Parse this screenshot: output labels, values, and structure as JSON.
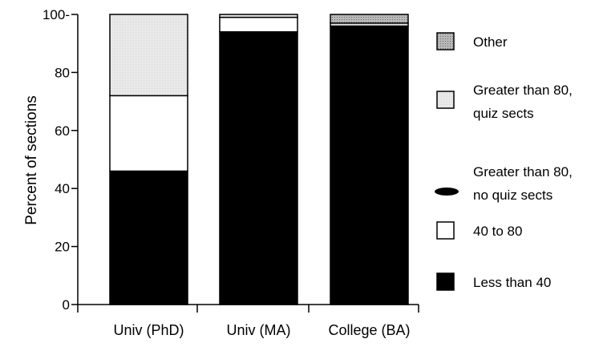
{
  "chart_data": {
    "type": "bar",
    "stacked": true,
    "ylabel": "Percent of sections",
    "xlabel": "",
    "ylim": [
      0,
      100
    ],
    "y_ticks": [
      "0",
      "20",
      "40",
      "60",
      "80",
      "100-"
    ],
    "grid": false,
    "legend_position": "right",
    "categories": [
      "Univ (PhD)",
      "Univ (MA)",
      "College (BA)"
    ],
    "series": [
      {
        "name": "Less than 40",
        "color": "#000000",
        "values": [
          46,
          94,
          96
        ]
      },
      {
        "name": "40 to 80",
        "color": "#ffffff",
        "values": [
          26,
          5,
          0
        ]
      },
      {
        "name": "Greater than 80, no quiz sects",
        "color": "#000000",
        "values": [
          0,
          0,
          0
        ]
      },
      {
        "name": "Greater than 80, quiz sects",
        "color": "#e4e4e4",
        "values": [
          28,
          1,
          1
        ]
      },
      {
        "name": "Other",
        "color": "#a8a8a8",
        "values": [
          0,
          0,
          3
        ]
      }
    ],
    "legend": [
      {
        "label": "Other",
        "lines": [
          "Other"
        ],
        "color": "#a8a8a8",
        "marker": "square-pattern"
      },
      {
        "label": "Greater than 80, quiz sects",
        "lines": [
          "Greater than 80,",
          "quiz sects"
        ],
        "color": "#e4e4e4",
        "marker": "square"
      },
      {
        "label": "Greater than 80, no quiz sects",
        "lines": [
          "Greater than 80,",
          "no quiz sects"
        ],
        "color": "#000000",
        "marker": "ellipse"
      },
      {
        "label": "40 to 80",
        "lines": [
          "40 to 80"
        ],
        "color": "#ffffff",
        "marker": "square"
      },
      {
        "label": "Less than 40",
        "lines": [
          "Less than 40"
        ],
        "color": "#000000",
        "marker": "square"
      }
    ]
  }
}
